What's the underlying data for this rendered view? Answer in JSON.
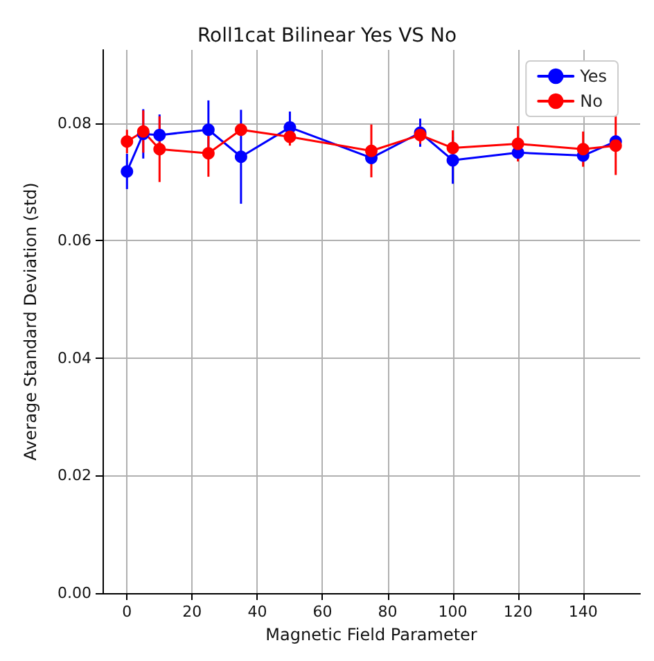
{
  "chart_data": {
    "type": "line",
    "title": "Roll1cat Bilinear Yes VS No",
    "xlabel": "Magnetic Field Parameter",
    "ylabel": "Average Standard Deviation (std)",
    "x": [
      0,
      5,
      10,
      25,
      35,
      50,
      75,
      90,
      100,
      120,
      140,
      150
    ],
    "series": [
      {
        "name": "Yes",
        "color": "#0000ff",
        "values": [
          0.0718,
          0.0782,
          0.078,
          0.0789,
          0.0743,
          0.0793,
          0.0741,
          0.0784,
          0.0737,
          0.075,
          0.0745,
          0.0769
        ],
        "errors": [
          0.003,
          0.0042,
          0.0035,
          0.005,
          0.008,
          0.0027,
          0.001,
          0.0024,
          0.004,
          0.0012,
          null,
          0.001
        ]
      },
      {
        "name": "No",
        "color": "#ff0000",
        "values": [
          0.0769,
          0.0786,
          0.0756,
          0.0749,
          0.0789,
          0.0777,
          0.0753,
          0.078,
          0.0758,
          0.0765,
          0.0756,
          0.0762
        ],
        "errors": [
          0.002,
          0.0036,
          0.0056,
          0.004,
          0.001,
          0.0015,
          0.0045,
          0.0015,
          0.003,
          0.003,
          0.003,
          0.005
        ]
      }
    ],
    "xlim": [
      -7.5,
      157.5
    ],
    "xticks": [
      0,
      20,
      40,
      60,
      80,
      100,
      120,
      140
    ],
    "ylim": [
      0,
      0.0925
    ],
    "yticks": [
      {
        "value": 0,
        "label": "0.00"
      },
      {
        "value": 0.02,
        "label": "0.02"
      },
      {
        "value": 0.04,
        "label": "0.04"
      },
      {
        "value": 0.06,
        "label": "0.06"
      },
      {
        "value": 0.08,
        "label": "0.08"
      }
    ],
    "grid": true,
    "legend": "top right",
    "marker": "circle",
    "line_style": "solid"
  }
}
